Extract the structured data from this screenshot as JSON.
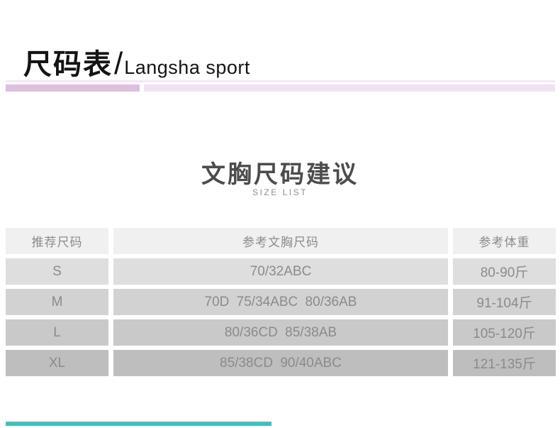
{
  "header": {
    "title_cn": "尺码表",
    "divider": "/",
    "brand": "Langsha sport"
  },
  "section": {
    "title": "文胸尺码建议",
    "subtitle": "SIZE LIST"
  },
  "size_table": {
    "columns": [
      "推荐尺码",
      "参考文胸尺码",
      "参考体重"
    ],
    "rows": [
      {
        "size": "S",
        "bra_sizes": "70/32ABC",
        "weight": "80-90斤"
      },
      {
        "size": "M",
        "bra_sizes": "70D 75/34ABC 80/36AB",
        "weight": "91-104斤"
      },
      {
        "size": "L",
        "bra_sizes": "80/36CD 85/38AB",
        "weight": "105-120斤"
      },
      {
        "size": "XL",
        "bra_sizes": "85/38CD 90/40ABC",
        "weight": "121-135斤"
      }
    ]
  },
  "colors": {
    "accent_bar_left": "#debfde",
    "accent_bar_right": "#f1e2f2",
    "accent_bar_thin": "#f5e8f5",
    "bottom_bar_teal": "#41c1ba",
    "table_header_bg": "#f0f0f0",
    "table_row_bgs": [
      "#dedede",
      "#d2d2d2",
      "#c9c9c9",
      "#bebebe"
    ],
    "table_text_gray": "#8b8b8b",
    "heading_text": "#4c4c4c"
  }
}
